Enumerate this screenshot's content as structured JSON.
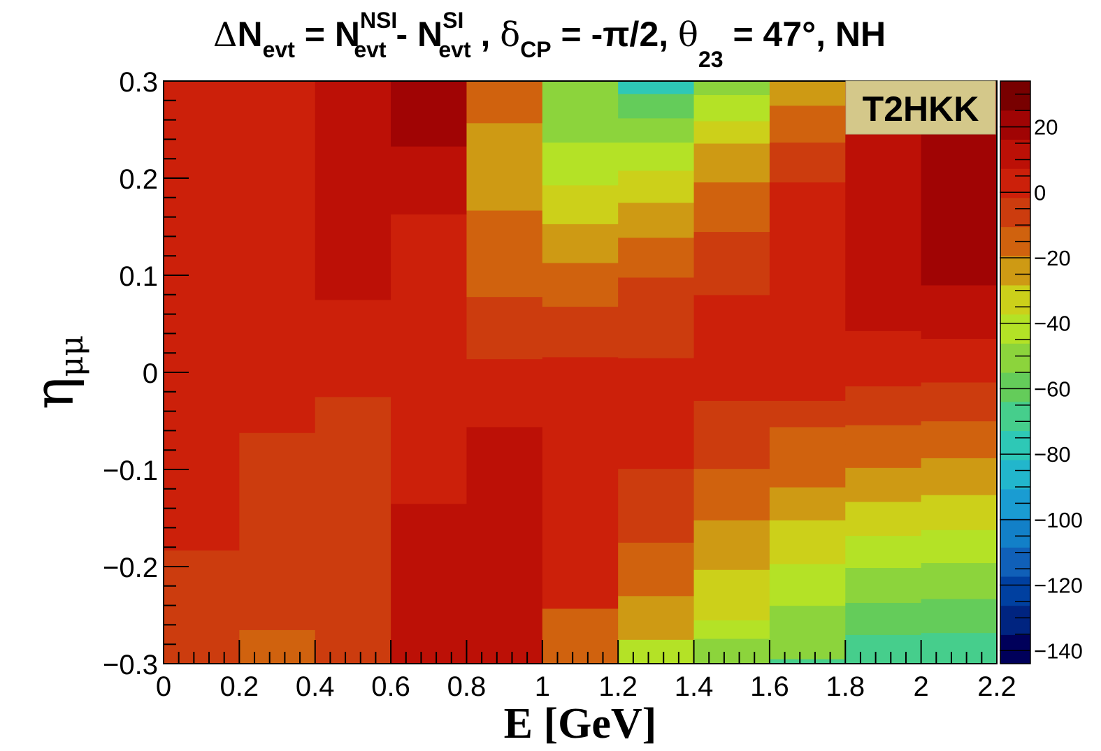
{
  "chart_data": {
    "type": "heatmap",
    "title": {
      "delta": "Δ",
      "lhs": "N",
      "lhs_sub": "evt",
      "eq1": " = ",
      "n1": "N",
      "n1_sub": "evt",
      "n1_sup": "NSI",
      "minus": " - ",
      "n2": "N",
      "n2_sub": "evt",
      "n2_sup": "SI",
      "sep1": " , ",
      "delta_cp": "δ",
      "delta_cp_sub": "CP",
      "cp_val": " = -π/2, ",
      "theta": "θ",
      "theta_sub": "23",
      "theta_val": " = 47°, NH"
    },
    "xlabel": "E [GeV]",
    "ylabel": "η",
    "ylabel_sub": "μμ",
    "legend_label": "T2HKK",
    "xlim": [
      0,
      2.2
    ],
    "ylim": [
      -0.3,
      0.3
    ],
    "x_ticks": [
      0,
      0.2,
      0.4,
      0.6,
      0.8,
      1,
      1.2,
      1.4,
      1.6,
      1.8,
      2,
      2.2
    ],
    "x_tick_labels": [
      "0",
      "0.2",
      "0.4",
      "0.6",
      "0.8",
      "1",
      "1.2",
      "1.4",
      "1.6",
      "1.8",
      "2",
      "2.2"
    ],
    "y_ticks": [
      -0.3,
      -0.2,
      -0.1,
      0,
      0.1,
      0.2,
      0.3
    ],
    "y_tick_labels": [
      "−0.3",
      "−0.2",
      "−0.1",
      "0",
      "0.1",
      "0.2",
      "0.3"
    ],
    "zlim": [
      -144,
      34
    ],
    "z_ticks": [
      20,
      0,
      -20,
      -40,
      -60,
      -80,
      -100,
      -120,
      -140
    ],
    "z_tick_labels": [
      "20",
      "0",
      "−20",
      "−40",
      "−60",
      "−80",
      "−100",
      "−120",
      "−140"
    ],
    "palette": [
      "#00005a",
      "#002480",
      "#0040a0",
      "#1060b8",
      "#1280c8",
      "#1a9cd2",
      "#22b6cc",
      "#2ec8b6",
      "#46ce8c",
      "#64cc5a",
      "#8cd43c",
      "#b4e226",
      "#ccd01a",
      "#ce9a14",
      "#d0620e",
      "#cc3c0e",
      "#cc200a",
      "#bc1006",
      "#a00404",
      "#780000"
    ],
    "columns": [
      {
        "x0": 0.0,
        "x1": 0.2,
        "cells": [
          [
            -0.3,
            -0.183,
            -8
          ],
          [
            -0.183,
            0.3,
            1
          ]
        ]
      },
      {
        "x0": 0.2,
        "x1": 0.4,
        "cells": [
          [
            -0.3,
            -0.265,
            -13
          ],
          [
            -0.265,
            -0.062,
            -8
          ],
          [
            -0.062,
            0.3,
            1
          ]
        ]
      },
      {
        "x0": 0.4,
        "x1": 0.6,
        "cells": [
          [
            -0.3,
            -0.025,
            -8
          ],
          [
            -0.025,
            0.075,
            1
          ],
          [
            0.075,
            0.3,
            9
          ]
        ]
      },
      {
        "x0": 0.6,
        "x1": 0.8,
        "cells": [
          [
            -0.3,
            -0.135,
            9
          ],
          [
            -0.135,
            0.163,
            1
          ],
          [
            0.163,
            0.233,
            9
          ],
          [
            0.233,
            0.3,
            22
          ]
        ]
      },
      {
        "x0": 0.8,
        "x1": 1.0,
        "cells": [
          [
            -0.3,
            -0.056,
            9
          ],
          [
            -0.056,
            0.014,
            1
          ],
          [
            0.014,
            0.078,
            -7
          ],
          [
            0.078,
            0.167,
            -16
          ],
          [
            0.167,
            0.257,
            -27
          ],
          [
            0.257,
            0.3,
            -16
          ]
        ]
      },
      {
        "x0": 1.0,
        "x1": 1.2,
        "cells": [
          [
            -0.3,
            -0.243,
            -12
          ],
          [
            -0.243,
            0.016,
            1
          ],
          [
            0.016,
            0.068,
            -7
          ],
          [
            0.068,
            0.113,
            -16
          ],
          [
            0.113,
            0.153,
            -27
          ],
          [
            0.153,
            0.193,
            -37
          ],
          [
            0.193,
            0.237,
            -45
          ],
          [
            0.237,
            0.3,
            -51
          ]
        ]
      },
      {
        "x0": 1.2,
        "x1": 1.4,
        "cells": [
          [
            -0.3,
            -0.275,
            -38
          ],
          [
            -0.275,
            -0.23,
            -27
          ],
          [
            -0.23,
            -0.175,
            -14
          ],
          [
            -0.175,
            -0.099,
            -7
          ],
          [
            -0.099,
            0.015,
            1
          ],
          [
            0.015,
            0.068,
            -7
          ],
          [
            0.068,
            0.098,
            -7
          ],
          [
            0.098,
            0.139,
            -14
          ],
          [
            0.139,
            0.175,
            -25
          ],
          [
            0.175,
            0.208,
            -33
          ],
          [
            0.208,
            0.237,
            -42
          ],
          [
            0.237,
            0.262,
            -50
          ],
          [
            0.262,
            0.287,
            -61
          ],
          [
            0.287,
            0.3,
            -76
          ]
        ]
      },
      {
        "x0": 1.4,
        "x1": 1.6,
        "cells": [
          [
            -0.3,
            -0.274,
            -47
          ],
          [
            -0.274,
            -0.255,
            -42
          ],
          [
            -0.255,
            -0.203,
            -36
          ],
          [
            -0.203,
            -0.152,
            -26
          ],
          [
            -0.152,
            -0.099,
            -12
          ],
          [
            -0.099,
            -0.062,
            -9
          ],
          [
            -0.062,
            -0.029,
            -3
          ],
          [
            -0.029,
            0.08,
            1
          ],
          [
            0.08,
            0.145,
            -10
          ],
          [
            0.145,
            0.196,
            -14
          ],
          [
            0.196,
            0.236,
            -26
          ],
          [
            0.236,
            0.259,
            -34
          ],
          [
            0.259,
            0.286,
            -41
          ],
          [
            0.286,
            0.3,
            -49
          ]
        ]
      },
      {
        "x0": 1.6,
        "x1": 1.8,
        "cells": [
          [
            -0.3,
            -0.295,
            -72
          ],
          [
            -0.295,
            -0.275,
            -55
          ],
          [
            -0.275,
            -0.24,
            -48
          ],
          [
            -0.24,
            -0.197,
            -42
          ],
          [
            -0.197,
            -0.152,
            -33
          ],
          [
            -0.152,
            -0.118,
            -26
          ],
          [
            -0.118,
            -0.084,
            -18
          ],
          [
            -0.084,
            -0.056,
            -12
          ],
          [
            -0.056,
            -0.029,
            -7
          ],
          [
            -0.029,
            0.196,
            5
          ],
          [
            0.196,
            0.237,
            -9
          ],
          [
            0.237,
            0.275,
            -16
          ],
          [
            0.275,
            0.3,
            -26
          ]
        ]
      },
      {
        "x0": 1.8,
        "x1": 2.0,
        "cells": [
          [
            -0.3,
            -0.27,
            -68
          ],
          [
            -0.27,
            -0.237,
            -56
          ],
          [
            -0.237,
            -0.201,
            -47
          ],
          [
            -0.201,
            -0.168,
            -42
          ],
          [
            -0.168,
            -0.133,
            -35
          ],
          [
            -0.133,
            -0.098,
            -24
          ],
          [
            -0.098,
            -0.074,
            -16
          ],
          [
            -0.074,
            -0.054,
            -12
          ],
          [
            -0.054,
            -0.014,
            -7
          ],
          [
            -0.014,
            0.043,
            1
          ],
          [
            0.043,
            0.3,
            9
          ]
        ]
      },
      {
        "x0": 2.0,
        "x1": 2.2,
        "cells": [
          [
            -0.3,
            -0.268,
            -68
          ],
          [
            -0.268,
            -0.233,
            -56
          ],
          [
            -0.233,
            -0.196,
            -47
          ],
          [
            -0.196,
            -0.162,
            -42
          ],
          [
            -0.162,
            -0.126,
            -35
          ],
          [
            -0.126,
            -0.088,
            -24
          ],
          [
            -0.088,
            -0.05,
            -12
          ],
          [
            -0.05,
            -0.01,
            -7
          ],
          [
            -0.01,
            0.035,
            1
          ],
          [
            0.035,
            0.09,
            9
          ],
          [
            0.09,
            0.3,
            22
          ]
        ]
      }
    ]
  }
}
